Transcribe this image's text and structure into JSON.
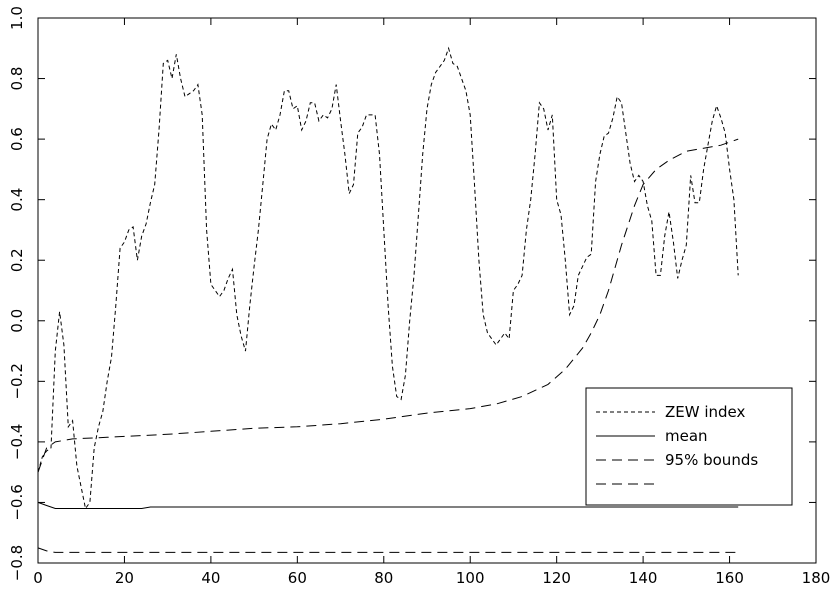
{
  "chart_data": {
    "type": "line",
    "xlim": [
      0,
      180
    ],
    "ylim": [
      -0.8,
      1.0
    ],
    "x_ticks": [
      0,
      20,
      40,
      60,
      80,
      100,
      120,
      140,
      160,
      180
    ],
    "y_ticks": [
      -0.8,
      -0.6,
      -0.4,
      -0.2,
      0.0,
      0.2,
      0.4,
      0.6,
      0.8,
      1.0
    ],
    "x_tick_labels": [
      "0",
      "20",
      "40",
      "60",
      "80",
      "100",
      "120",
      "140",
      "160",
      "180"
    ],
    "y_tick_labels": [
      "−0.8",
      "−0.6",
      "−0.4",
      "−0.2",
      "0.0",
      "0.2",
      "0.4",
      "0.6",
      "0.8",
      "1.0"
    ],
    "grid": false,
    "legend_position": "lower-right",
    "series": [
      {
        "name": "ZEW index",
        "style": "short-dash",
        "points": [
          [
            0,
            -0.5
          ],
          [
            1,
            -0.45
          ],
          [
            2,
            -0.43
          ],
          [
            3,
            -0.42
          ],
          [
            4,
            -0.1
          ],
          [
            5,
            0.03
          ],
          [
            6,
            -0.08
          ],
          [
            7,
            -0.35
          ],
          [
            8,
            -0.33
          ],
          [
            9,
            -0.48
          ],
          [
            10,
            -0.55
          ],
          [
            11,
            -0.62
          ],
          [
            12,
            -0.6
          ],
          [
            13,
            -0.42
          ],
          [
            14,
            -0.35
          ],
          [
            15,
            -0.3
          ],
          [
            16,
            -0.2
          ],
          [
            17,
            -0.12
          ],
          [
            18,
            0.05
          ],
          [
            19,
            0.24
          ],
          [
            20,
            0.26
          ],
          [
            21,
            0.3
          ],
          [
            22,
            0.31
          ],
          [
            23,
            0.2
          ],
          [
            24,
            0.28
          ],
          [
            25,
            0.32
          ],
          [
            26,
            0.39
          ],
          [
            27,
            0.45
          ],
          [
            28,
            0.63
          ],
          [
            29,
            0.85
          ],
          [
            30,
            0.86
          ],
          [
            31,
            0.8
          ],
          [
            32,
            0.88
          ],
          [
            33,
            0.8
          ],
          [
            34,
            0.74
          ],
          [
            35,
            0.75
          ],
          [
            36,
            0.76
          ],
          [
            37,
            0.78
          ],
          [
            38,
            0.68
          ],
          [
            39,
            0.3
          ],
          [
            40,
            0.12
          ],
          [
            41,
            0.1
          ],
          [
            42,
            0.08
          ],
          [
            43,
            0.1
          ],
          [
            44,
            0.14
          ],
          [
            45,
            0.17
          ],
          [
            46,
            0.02
          ],
          [
            47,
            -0.05
          ],
          [
            48,
            -0.1
          ],
          [
            49,
            0.05
          ],
          [
            50,
            0.18
          ],
          [
            51,
            0.3
          ],
          [
            52,
            0.45
          ],
          [
            53,
            0.6
          ],
          [
            54,
            0.65
          ],
          [
            55,
            0.63
          ],
          [
            56,
            0.68
          ],
          [
            57,
            0.76
          ],
          [
            58,
            0.76
          ],
          [
            59,
            0.7
          ],
          [
            60,
            0.71
          ],
          [
            61,
            0.63
          ],
          [
            62,
            0.66
          ],
          [
            63,
            0.72
          ],
          [
            64,
            0.72
          ],
          [
            65,
            0.66
          ],
          [
            66,
            0.68
          ],
          [
            67,
            0.67
          ],
          [
            68,
            0.7
          ],
          [
            69,
            0.78
          ],
          [
            70,
            0.66
          ],
          [
            71,
            0.55
          ],
          [
            72,
            0.42
          ],
          [
            73,
            0.45
          ],
          [
            74,
            0.62
          ],
          [
            75,
            0.64
          ],
          [
            76,
            0.68
          ],
          [
            77,
            0.68
          ],
          [
            78,
            0.68
          ],
          [
            79,
            0.55
          ],
          [
            80,
            0.3
          ],
          [
            81,
            0.05
          ],
          [
            82,
            -0.15
          ],
          [
            83,
            -0.25
          ],
          [
            84,
            -0.26
          ],
          [
            85,
            -0.18
          ],
          [
            86,
            0.0
          ],
          [
            87,
            0.15
          ],
          [
            88,
            0.35
          ],
          [
            89,
            0.55
          ],
          [
            90,
            0.7
          ],
          [
            91,
            0.78
          ],
          [
            92,
            0.82
          ],
          [
            93,
            0.84
          ],
          [
            94,
            0.86
          ],
          [
            95,
            0.9
          ],
          [
            96,
            0.85
          ],
          [
            97,
            0.84
          ],
          [
            98,
            0.8
          ],
          [
            99,
            0.76
          ],
          [
            100,
            0.68
          ],
          [
            101,
            0.45
          ],
          [
            102,
            0.2
          ],
          [
            103,
            0.02
          ],
          [
            104,
            -0.04
          ],
          [
            105,
            -0.06
          ],
          [
            106,
            -0.08
          ],
          [
            107,
            -0.06
          ],
          [
            108,
            -0.04
          ],
          [
            109,
            -0.06
          ],
          [
            110,
            0.1
          ],
          [
            111,
            0.12
          ],
          [
            112,
            0.15
          ],
          [
            113,
            0.3
          ],
          [
            114,
            0.4
          ],
          [
            115,
            0.55
          ],
          [
            116,
            0.72
          ],
          [
            117,
            0.7
          ],
          [
            118,
            0.63
          ],
          [
            119,
            0.68
          ],
          [
            120,
            0.4
          ],
          [
            121,
            0.35
          ],
          [
            122,
            0.2
          ],
          [
            123,
            0.02
          ],
          [
            124,
            0.05
          ],
          [
            125,
            0.15
          ],
          [
            126,
            0.18
          ],
          [
            127,
            0.21
          ],
          [
            128,
            0.22
          ],
          [
            129,
            0.46
          ],
          [
            130,
            0.55
          ],
          [
            131,
            0.61
          ],
          [
            132,
            0.62
          ],
          [
            133,
            0.67
          ],
          [
            134,
            0.74
          ],
          [
            135,
            0.72
          ],
          [
            136,
            0.62
          ],
          [
            137,
            0.52
          ],
          [
            138,
            0.46
          ],
          [
            139,
            0.48
          ],
          [
            140,
            0.46
          ],
          [
            141,
            0.38
          ],
          [
            142,
            0.33
          ],
          [
            143,
            0.15
          ],
          [
            144,
            0.15
          ],
          [
            145,
            0.28
          ],
          [
            146,
            0.36
          ],
          [
            147,
            0.26
          ],
          [
            148,
            0.14
          ],
          [
            149,
            0.2
          ],
          [
            150,
            0.25
          ],
          [
            151,
            0.48
          ],
          [
            152,
            0.39
          ],
          [
            153,
            0.39
          ],
          [
            154,
            0.5
          ],
          [
            155,
            0.58
          ],
          [
            156,
            0.66
          ],
          [
            157,
            0.71
          ],
          [
            158,
            0.67
          ],
          [
            159,
            0.62
          ],
          [
            160,
            0.5
          ],
          [
            161,
            0.4
          ],
          [
            162,
            0.15
          ]
        ]
      },
      {
        "name": "mean",
        "style": "solid",
        "points": [
          [
            0,
            -0.6
          ],
          [
            2,
            -0.61
          ],
          [
            4,
            -0.62
          ],
          [
            8,
            -0.62
          ],
          [
            16,
            -0.62
          ],
          [
            24,
            -0.62
          ],
          [
            26,
            -0.615
          ],
          [
            30,
            -0.615
          ],
          [
            60,
            -0.615
          ],
          [
            100,
            -0.615
          ],
          [
            140,
            -0.615
          ],
          [
            162,
            -0.615
          ]
        ]
      },
      {
        "name": "95% bounds",
        "style": "long-dash",
        "points": [
          [
            0,
            -0.5
          ],
          [
            2,
            -0.42
          ],
          [
            4,
            -0.4
          ],
          [
            8,
            -0.39
          ],
          [
            16,
            -0.385
          ],
          [
            30,
            -0.375
          ],
          [
            40,
            -0.365
          ],
          [
            50,
            -0.355
          ],
          [
            60,
            -0.35
          ],
          [
            70,
            -0.34
          ],
          [
            80,
            -0.325
          ],
          [
            90,
            -0.305
          ],
          [
            100,
            -0.29
          ],
          [
            106,
            -0.275
          ],
          [
            112,
            -0.25
          ],
          [
            118,
            -0.21
          ],
          [
            122,
            -0.16
          ],
          [
            126,
            -0.09
          ],
          [
            128,
            -0.04
          ],
          [
            130,
            0.02
          ],
          [
            132,
            0.1
          ],
          [
            135,
            0.25
          ],
          [
            138,
            0.38
          ],
          [
            140,
            0.45
          ],
          [
            143,
            0.5
          ],
          [
            146,
            0.53
          ],
          [
            150,
            0.56
          ],
          [
            154,
            0.57
          ],
          [
            158,
            0.58
          ],
          [
            162,
            0.6
          ]
        ]
      },
      {
        "name": "",
        "style": "long-dash",
        "points": [
          [
            0,
            -0.75
          ],
          [
            2,
            -0.76
          ],
          [
            4,
            -0.765
          ],
          [
            20,
            -0.765
          ],
          [
            60,
            -0.765
          ],
          [
            100,
            -0.765
          ],
          [
            140,
            -0.765
          ],
          [
            162,
            -0.765
          ]
        ]
      }
    ]
  }
}
